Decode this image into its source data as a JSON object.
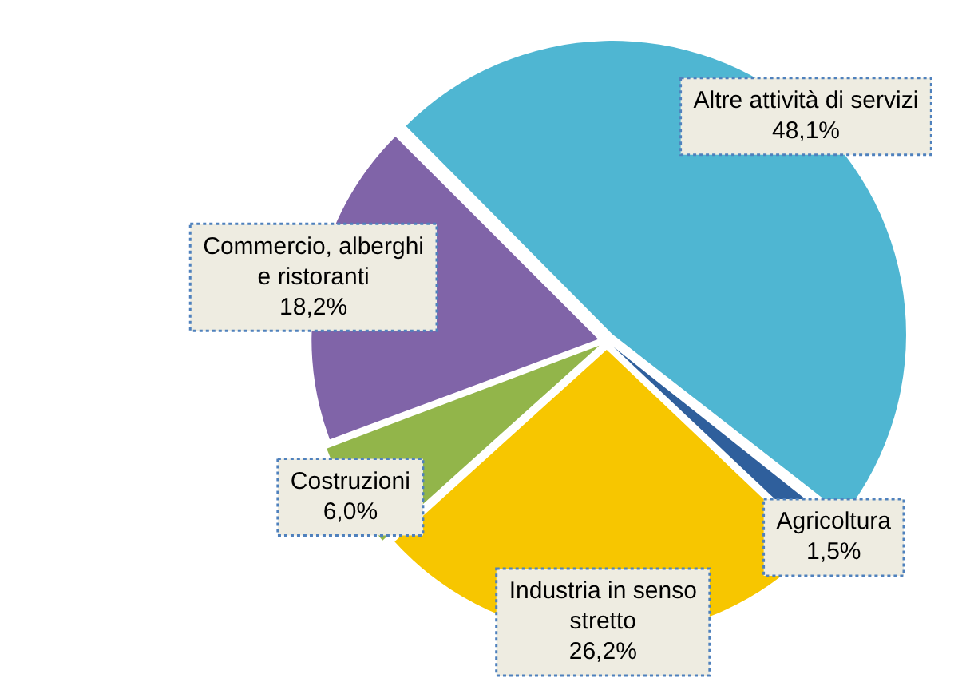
{
  "chart_data": {
    "type": "pie",
    "categories": [
      "Altre attività di servizi",
      "Agricoltura",
      "Industria in senso stretto",
      "Costruzioni",
      "Commercio, alberghi e ristoranti"
    ],
    "values": [
      48.1,
      1.5,
      26.2,
      6.0,
      18.2
    ],
    "value_labels": [
      "48,1%",
      "1,5%",
      "26,2%",
      "6,0%",
      "18,2%"
    ],
    "colors": [
      "#4fb6d2",
      "#2f5f9c",
      "#f7c600",
      "#92b54a",
      "#8064a8"
    ],
    "legend": false
  }
}
